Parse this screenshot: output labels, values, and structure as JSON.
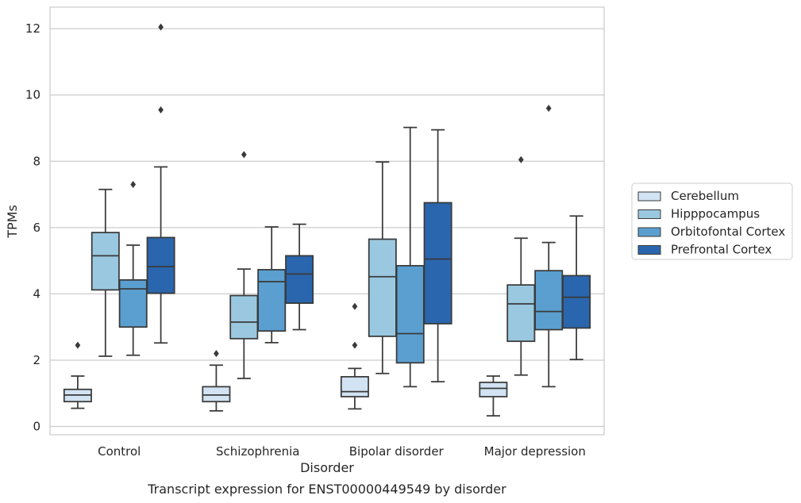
{
  "chart_data": {
    "type": "boxplot",
    "title": "",
    "caption": "Transcript expression for ENST00000449549 by disorder",
    "xlabel": "Disorder",
    "ylabel": "TPMs",
    "ylim": [
      -0.25,
      12.65
    ],
    "yticks": [
      0,
      2,
      4,
      6,
      8,
      10,
      12
    ],
    "grid": "horizontal",
    "legend_position": "right",
    "categories": [
      "Control",
      "Schizophrenia",
      "Bipolar disorder",
      "Major depression"
    ],
    "series": [
      {
        "name": "Cerebellum",
        "color": "#d2e3f3",
        "boxes": [
          {
            "whislo": 0.55,
            "q1": 0.75,
            "med": 0.95,
            "q3": 1.12,
            "whishi": 1.52,
            "fliers": [
              2.45
            ]
          },
          {
            "whislo": 0.47,
            "q1": 0.75,
            "med": 0.95,
            "q3": 1.2,
            "whishi": 1.85,
            "fliers": [
              2.2
            ]
          },
          {
            "whislo": 0.53,
            "q1": 0.9,
            "med": 1.05,
            "q3": 1.5,
            "whishi": 1.75,
            "fliers": [
              2.45,
              3.62
            ]
          },
          {
            "whislo": 0.32,
            "q1": 0.9,
            "med": 1.15,
            "q3": 1.33,
            "whishi": 1.52,
            "fliers": []
          }
        ]
      },
      {
        "name": "Hipppocampus",
        "color": "#9ac8e0",
        "boxes": [
          {
            "whislo": 2.12,
            "q1": 4.12,
            "med": 5.15,
            "q3": 5.85,
            "whishi": 7.15,
            "fliers": []
          },
          {
            "whislo": 1.45,
            "q1": 2.65,
            "med": 3.15,
            "q3": 3.95,
            "whishi": 4.75,
            "fliers": [
              8.2
            ]
          },
          {
            "whislo": 1.6,
            "q1": 2.72,
            "med": 4.52,
            "q3": 5.65,
            "whishi": 7.98,
            "fliers": []
          },
          {
            "whislo": 1.55,
            "q1": 2.57,
            "med": 3.7,
            "q3": 4.27,
            "whishi": 5.68,
            "fliers": [
              8.05
            ]
          }
        ]
      },
      {
        "name": "Orbitofontal Cortex",
        "color": "#5a9fcf",
        "boxes": [
          {
            "whislo": 2.15,
            "q1": 3.0,
            "med": 4.15,
            "q3": 4.42,
            "whishi": 5.47,
            "fliers": [
              7.3
            ]
          },
          {
            "whislo": 2.53,
            "q1": 2.88,
            "med": 4.37,
            "q3": 4.73,
            "whishi": 6.02,
            "fliers": []
          },
          {
            "whislo": 1.2,
            "q1": 1.92,
            "med": 2.8,
            "q3": 4.85,
            "whishi": 9.02,
            "fliers": []
          },
          {
            "whislo": 1.2,
            "q1": 2.92,
            "med": 3.47,
            "q3": 4.7,
            "whishi": 5.55,
            "fliers": [
              9.6
            ]
          }
        ]
      },
      {
        "name": "Prefrontal Cortex",
        "color": "#2a66ad",
        "boxes": [
          {
            "whislo": 2.52,
            "q1": 4.02,
            "med": 4.82,
            "q3": 5.7,
            "whishi": 7.83,
            "fliers": [
              9.55,
              12.05
            ]
          },
          {
            "whislo": 2.92,
            "q1": 3.72,
            "med": 4.6,
            "q3": 5.15,
            "whishi": 6.1,
            "fliers": []
          },
          {
            "whislo": 1.35,
            "q1": 3.1,
            "med": 5.05,
            "q3": 6.75,
            "whishi": 8.95,
            "fliers": []
          },
          {
            "whislo": 2.02,
            "q1": 2.97,
            "med": 3.9,
            "q3": 4.55,
            "whishi": 6.35,
            "fliers": []
          }
        ]
      }
    ]
  }
}
